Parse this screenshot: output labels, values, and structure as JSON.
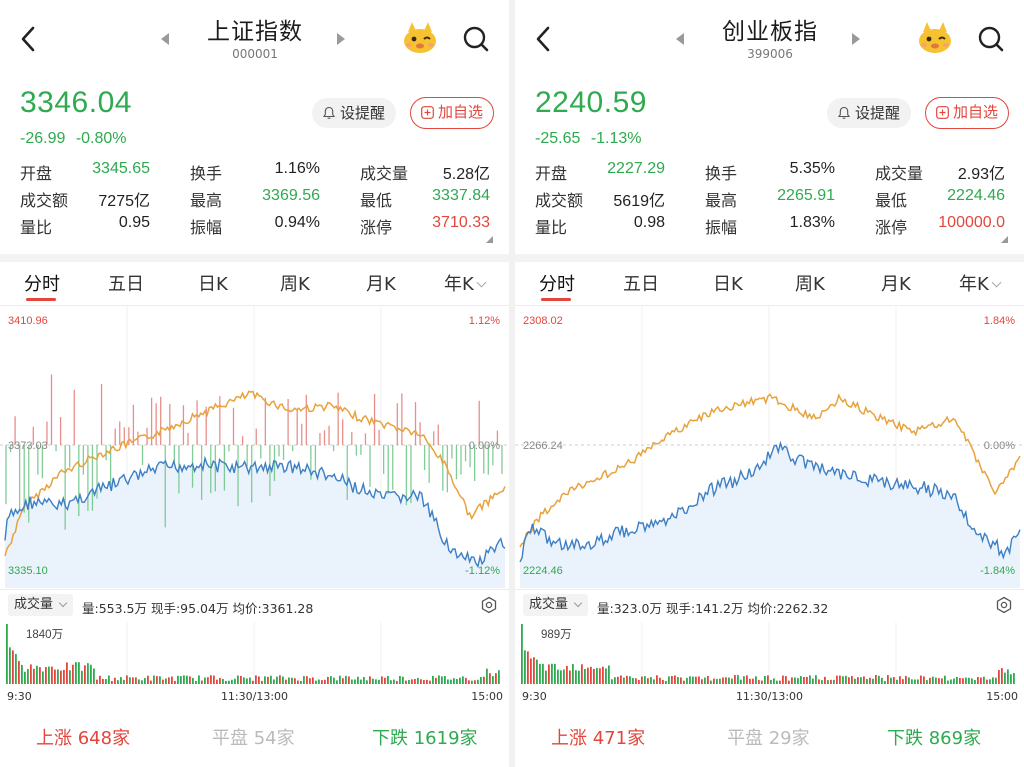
{
  "panels": [
    {
      "title": "上证指数",
      "code": "000001",
      "price": "3346.04",
      "change": "-26.99",
      "change_pct": "-0.80%",
      "alert_label": "设提醒",
      "fav_label": "加自选",
      "stats": [
        [
          {
            "label": "开盘",
            "value": "3345.65",
            "tone": "green"
          },
          {
            "label": "换手",
            "value": "1.16%",
            "tone": "neutral"
          },
          {
            "label": "成交量",
            "value": "5.28亿",
            "tone": "neutral"
          }
        ],
        [
          {
            "label": "成交额",
            "value": "7275亿",
            "tone": "neutral"
          },
          {
            "label": "最高",
            "value": "3369.56",
            "tone": "green"
          },
          {
            "label": "最低",
            "value": "3337.84",
            "tone": "green"
          }
        ],
        [
          {
            "label": "量比",
            "value": "0.95",
            "tone": "neutral"
          },
          {
            "label": "振幅",
            "value": "0.94%",
            "tone": "neutral"
          },
          {
            "label": "涨停",
            "value": "3710.33",
            "tone": "red"
          }
        ]
      ],
      "tabs": [
        "分时",
        "五日",
        "日K",
        "周K",
        "月K",
        "年K"
      ],
      "active_tab": "分时",
      "axis": {
        "top": "3410.96",
        "mid": "3373.03",
        "bottom": "3335.10",
        "top_pct": "1.12%",
        "mid_pct": "0.00%",
        "bottom_pct": "-1.12%"
      },
      "volume_selector": "成交量",
      "volume_info": "量:553.5万  现手:95.04万  均价:3361.28",
      "volume_max": "1840万",
      "times": [
        "9:30",
        "11:30/13:00",
        "15:00"
      ],
      "breadth": {
        "up_label": "上涨",
        "up_value": "648家",
        "flat_label": "平盘",
        "flat_value": "54家",
        "down_label": "下跌",
        "down_value": "1619家"
      },
      "mascot_icon": "mascot-icon",
      "show_bars": true
    },
    {
      "title": "创业板指",
      "code": "399006",
      "price": "2240.59",
      "change": "-25.65",
      "change_pct": "-1.13%",
      "alert_label": "设提醒",
      "fav_label": "加自选",
      "stats": [
        [
          {
            "label": "开盘",
            "value": "2227.29",
            "tone": "green"
          },
          {
            "label": "换手",
            "value": "5.35%",
            "tone": "neutral"
          },
          {
            "label": "成交量",
            "value": "2.93亿",
            "tone": "neutral"
          }
        ],
        [
          {
            "label": "成交额",
            "value": "5619亿",
            "tone": "neutral"
          },
          {
            "label": "最高",
            "value": "2265.91",
            "tone": "green"
          },
          {
            "label": "最低",
            "value": "2224.46",
            "tone": "green"
          }
        ],
        [
          {
            "label": "量比",
            "value": "0.98",
            "tone": "neutral"
          },
          {
            "label": "振幅",
            "value": "1.83%",
            "tone": "neutral"
          },
          {
            "label": "涨停",
            "value": "100000.0",
            "tone": "red"
          }
        ]
      ],
      "tabs": [
        "分时",
        "五日",
        "日K",
        "周K",
        "月K",
        "年K"
      ],
      "active_tab": "分时",
      "axis": {
        "top": "2308.02",
        "mid": "2266.24",
        "bottom": "2224.46",
        "top_pct": "1.84%",
        "mid_pct": "0.00%",
        "bottom_pct": "-1.84%"
      },
      "volume_selector": "成交量",
      "volume_info": "量:323.0万  现手:141.2万  均价:2262.32",
      "volume_max": "989万",
      "times": [
        "9:30",
        "11:30/13:00",
        "15:00"
      ],
      "breadth": {
        "up_label": "上涨",
        "up_value": "471家",
        "flat_label": "平盘",
        "flat_value": "29家",
        "down_label": "下跌",
        "down_value": "869家"
      },
      "mascot_icon": "mascot-icon",
      "show_bars": false
    }
  ],
  "colors": {
    "up": "#e2463c",
    "down": "#2eaa4f",
    "price_line": "#3d7fc4",
    "avg_line": "#e8a23c",
    "fill": "#eaf2fb"
  }
}
